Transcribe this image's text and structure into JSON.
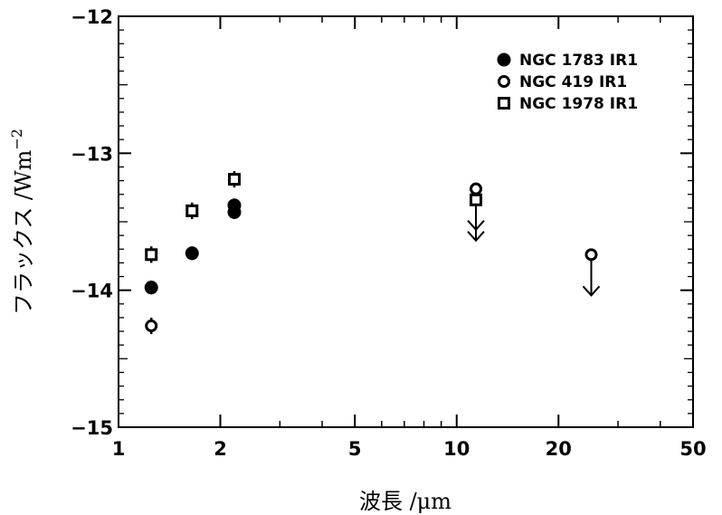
{
  "chart_data": {
    "type": "scatter",
    "xscale": "log",
    "xlim": [
      1,
      50
    ],
    "ylim": [
      -15,
      -12
    ],
    "xlabel": "波長 /μm",
    "ylabel": "フラックス /Wm",
    "ylabel_exp": "−2",
    "xticks": [
      {
        "value": 1,
        "label": "1"
      },
      {
        "value": 2,
        "label": "2"
      },
      {
        "value": 5,
        "label": "5"
      },
      {
        "value": 10,
        "label": "10"
      },
      {
        "value": 20,
        "label": "20"
      },
      {
        "value": 50,
        "label": "50"
      }
    ],
    "yticks": [
      {
        "value": -12,
        "label": "−12"
      },
      {
        "value": -13,
        "label": "−13"
      },
      {
        "value": -14,
        "label": "−14"
      },
      {
        "value": -15,
        "label": "−15"
      }
    ],
    "legend_position": "top-right",
    "series": [
      {
        "name": "NGC 1783 IR1",
        "marker": "filled-circle",
        "points": [
          {
            "x": 1.25,
            "y": -13.98,
            "err": 0.05,
            "upper_limit": false
          },
          {
            "x": 1.65,
            "y": -13.73,
            "err": 0.05,
            "upper_limit": false
          },
          {
            "x": 2.2,
            "y": -13.38,
            "err": 0.05,
            "upper_limit": false
          },
          {
            "x": 2.2,
            "y": -13.43,
            "err": 0.05,
            "upper_limit": false
          }
        ]
      },
      {
        "name": "NGC 419 IR1",
        "marker": "open-circle",
        "points": [
          {
            "x": 1.25,
            "y": -14.26,
            "err": 0.06,
            "upper_limit": false
          },
          {
            "x": 11.4,
            "y": -13.26,
            "err": 0,
            "upper_limit": true
          },
          {
            "x": 25.0,
            "y": -13.74,
            "err": 0,
            "upper_limit": true
          }
        ]
      },
      {
        "name": "NGC 1978 IR1",
        "marker": "open-square",
        "points": [
          {
            "x": 1.25,
            "y": -13.74,
            "err": 0.06,
            "upper_limit": false
          },
          {
            "x": 1.65,
            "y": -13.42,
            "err": 0.06,
            "upper_limit": false
          },
          {
            "x": 2.2,
            "y": -13.19,
            "err": 0.06,
            "upper_limit": false
          },
          {
            "x": 11.4,
            "y": -13.34,
            "err": 0,
            "upper_limit": true
          }
        ]
      }
    ]
  }
}
